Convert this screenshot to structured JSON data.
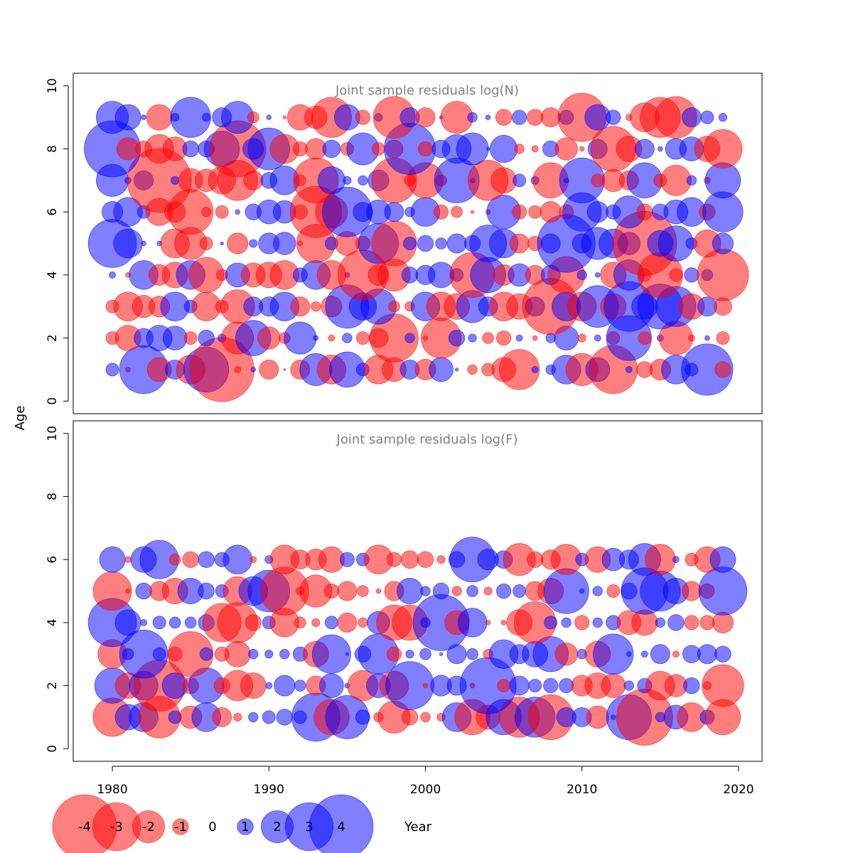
{
  "chart_data": [
    {
      "type": "bubble",
      "title": "Joint sample residuals log(N)",
      "xlabel": "Year",
      "ylabel": "Age",
      "xlim": [
        1977.5,
        2021.5
      ],
      "ylim": [
        -0.4,
        10.4
      ],
      "xticks": [
        1980,
        1990,
        2000,
        2010,
        2020
      ],
      "yticks": [
        0,
        2,
        4,
        6,
        8,
        10
      ],
      "years": [
        1980,
        1981,
        1982,
        1983,
        1984,
        1985,
        1986,
        1987,
        1988,
        1989,
        1990,
        1991,
        1992,
        1993,
        1994,
        1995,
        1996,
        1997,
        1998,
        1999,
        2000,
        2001,
        2002,
        2003,
        2004,
        2005,
        2006,
        2007,
        2008,
        2009,
        2010,
        2011,
        2012,
        2013,
        2014,
        2015,
        2016,
        2017,
        2018,
        2019
      ],
      "ages": [
        1,
        2,
        3,
        4,
        5,
        6,
        7,
        8,
        9
      ],
      "residuals": [
        [
          0.8,
          -0.3,
          3.0,
          -1.5,
          1.2,
          -1.8,
          2.8,
          -4.0,
          -0.4,
          0.3,
          -1.2,
          0.1,
          -1.2,
          2.0,
          -1.8,
          2.2,
          0.8,
          -1.8,
          -1.5,
          1.2,
          -1.3,
          1.5,
          0.2,
          -0.6,
          -0.8,
          -1.5,
          -2.5,
          0.4,
          0.6,
          1.8,
          -2.0,
          1.5,
          -3.0,
          0.4,
          -1.0,
          -1.3,
          1.8,
          0.8,
          3.2,
          -1.0
        ],
        [
          -0.8,
          -1.6,
          1.2,
          1.6,
          1.5,
          -0.8,
          1.0,
          0.5,
          -2.0,
          2.2,
          -1.4,
          -0.7,
          2.0,
          0.3,
          -0.4,
          0.6,
          -0.8,
          -1.2,
          -3.0,
          0.6,
          -0.3,
          -2.5,
          1.0,
          0.5,
          -0.7,
          -0.9,
          0.4,
          -0.3,
          0.6,
          1.5,
          -0.5,
          0.4,
          -0.8,
          2.8,
          -0.8,
          0.4,
          -2.1,
          -0.4,
          0.3,
          -0.8
        ],
        [
          -0.8,
          -1.8,
          -1.4,
          -1.3,
          1.8,
          0.8,
          -1.8,
          -0.8,
          -2.1,
          1.2,
          1.2,
          1.8,
          -1.2,
          -0.6,
          -1.3,
          2.7,
          1.7,
          2.2,
          -0.7,
          -0.6,
          1.8,
          -1.8,
          -1.6,
          2.0,
          1.2,
          -1.8,
          -1.6,
          1.2,
          -3.5,
          1.8,
          -1.8,
          2.6,
          -1.6,
          3.1,
          1.6,
          2.8,
          2.5,
          -1.6,
          1.2,
          -1.1
        ],
        [
          0.4,
          -0.3,
          1.8,
          -1.3,
          -1.6,
          1.8,
          -2.2,
          -0.7,
          1.5,
          -1.5,
          -1.6,
          -1.8,
          0.9,
          1.8,
          -1.8,
          0.3,
          -3.1,
          -1.3,
          -2.0,
          1.0,
          1.2,
          1.6,
          0.8,
          -2.8,
          2.2,
          -1.3,
          1.4,
          -1.2,
          1.2,
          -2.3,
          0.6,
          0.3,
          -1.6,
          1.9,
          -0.8,
          -2.8,
          -0.8,
          0.9,
          0.7,
          -3.2
        ],
        [
          3.0,
          1.8,
          0.3,
          0.3,
          -1.8,
          -2.0,
          -0.8,
          0.2,
          -1.3,
          0.5,
          1.3,
          1.4,
          -0.3,
          -2.4,
          0.8,
          -1.5,
          -0.9,
          2.5,
          -2.8,
          0.8,
          1.0,
          0.7,
          1.2,
          1.0,
          2.3,
          1.8,
          -1.2,
          -0.9,
          1.2,
          3.6,
          1.2,
          2.0,
          1.8,
          1.4,
          -4.0,
          1.6,
          2.2,
          0.7,
          -1.7,
          1.3
        ],
        [
          1.3,
          1.8,
          0.8,
          -1.7,
          -1.3,
          -2.8,
          -0.6,
          -0.8,
          0.3,
          1.0,
          1.5,
          1.4,
          -0.9,
          -3.2,
          -2.0,
          3.1,
          1.2,
          1.5,
          1.2,
          0.6,
          1.8,
          -0.9,
          -0.7,
          -0.2,
          -0.3,
          2.1,
          -0.9,
          -0.8,
          -1.3,
          -0.9,
          2.4,
          1.3,
          0.9,
          2.0,
          -1.0,
          1.0,
          1.5,
          1.8,
          -1.0,
          2.5
        ],
        [
          2.0,
          0.4,
          1.2,
          -4.0,
          0.5,
          -1.5,
          -1.4,
          -1.7,
          -2.5,
          -1.2,
          1.0,
          1.8,
          -0.7,
          -2.8,
          1.7,
          0.5,
          0.6,
          1.3,
          -2.8,
          -0.7,
          -2.2,
          -0.7,
          2.8,
          0.3,
          -2.5,
          -1.6,
          0.8,
          0.5,
          -2.2,
          0.3,
          2.8,
          -0.8,
          -1.4,
          -1.2,
          2.2,
          -0.8,
          -1.9,
          0.6,
          -0.4,
          2.2
        ],
        [
          3.5,
          -1.4,
          -1.0,
          -1.8,
          -1.5,
          1.0,
          1.0,
          2.2,
          -3.5,
          1.3,
          2.6,
          -1.8,
          -0.9,
          -1.3,
          1.1,
          -0.8,
          2.0,
          -0.8,
          -1.1,
          3.2,
          -0.9,
          1.1,
          1.8,
          2.0,
          0.2,
          1.7,
          -0.6,
          -0.4,
          1.0,
          -1.4,
          -0.3,
          1.2,
          -2.8,
          -1.6,
          1.2,
          0.3,
          1.3,
          1.5,
          -1.6,
          -2.4
        ],
        [
          2.0,
          1.6,
          0.3,
          -1.6,
          0.5,
          2.5,
          0.5,
          1.2,
          2.0,
          -0.7,
          0.3,
          -0.2,
          -1.6,
          -1.4,
          -2.5,
          1.6,
          -0.9,
          0.5,
          -2.6,
          1.2,
          -1.2,
          0.2,
          -2.0,
          0.6,
          0.3,
          -1.0,
          0.9,
          -1.0,
          -1.2,
          0.9,
          -3.0,
          1.6,
          0.9,
          -0.4,
          -1.8,
          -2.5,
          -2.6,
          1.2,
          0.8,
          0.5
        ]
      ]
    },
    {
      "type": "bubble",
      "title": "Joint sample residuals log(F)",
      "xlabel": "Year",
      "ylabel": "Age",
      "xlim": [
        1977.5,
        2021.5
      ],
      "ylim": [
        -0.4,
        10.4
      ],
      "xticks": [
        1980,
        1990,
        2000,
        2010,
        2020
      ],
      "yticks": [
        0,
        2,
        4,
        6,
        8,
        10
      ],
      "years": [
        1980,
        1981,
        1982,
        1983,
        1984,
        1985,
        1986,
        1987,
        1988,
        1989,
        1990,
        1991,
        1992,
        1993,
        1994,
        1995,
        1996,
        1997,
        1998,
        1999,
        2000,
        2001,
        2002,
        2003,
        2004,
        2005,
        2006,
        2007,
        2008,
        2009,
        2010,
        2011,
        2012,
        2013,
        2014,
        2015,
        2016,
        2017,
        2018,
        2019
      ],
      "ages": [
        1,
        2,
        3,
        4,
        5,
        6
      ],
      "residuals": [
        [
          -2.4,
          1.6,
          1.8,
          -2.6,
          0.8,
          -1.4,
          1.8,
          -1.2,
          -0.5,
          0.6,
          0.8,
          1.0,
          0.8,
          3.0,
          -2.2,
          2.7,
          0.9,
          -0.6,
          -2.0,
          -1.0,
          -0.6,
          -0.5,
          1.8,
          -2.2,
          -1.5,
          2.2,
          -2.5,
          2.5,
          -2.8,
          1.2,
          1.2,
          -1.4,
          0.3,
          2.8,
          -3.5,
          0.6,
          1.5,
          -1.8,
          0.9,
          -2.2
        ],
        [
          2.2,
          -1.6,
          1.8,
          -3.2,
          1.6,
          -1.0,
          2.2,
          -1.0,
          -1.9,
          -1.6,
          0.4,
          1.3,
          0.7,
          -1.2,
          1.5,
          0.3,
          -1.9,
          1.5,
          -1.8,
          3.0,
          -0.3,
          1.3,
          1.2,
          -0.3,
          3.5,
          -0.8,
          1.2,
          0.8,
          0.9,
          0.9,
          -1.3,
          -1.6,
          -1.5,
          0.6,
          0.9,
          -1.8,
          -1.4,
          1.0,
          -0.5,
          -2.6
        ],
        [
          -1.8,
          0.7,
          3.0,
          0.8,
          -0.9,
          -2.8,
          0.8,
          -0.9,
          -1.6,
          0.6,
          0.5,
          0.6,
          0.9,
          -1.6,
          2.4,
          0.2,
          1.0,
          2.5,
          -0.9,
          0.5,
          0.7,
          0.2,
          1.2,
          0.7,
          -0.6,
          1.8,
          1.2,
          1.6,
          2.2,
          -1.4,
          0.6,
          -1.6,
          2.5,
          0.3,
          0.4,
          1.2,
          -0.4,
          1.1,
          1.2,
          1.0
        ],
        [
          3.0,
          1.6,
          0.4,
          0.8,
          0.7,
          0.7,
          1.0,
          -2.4,
          -2.5,
          -1.0,
          0.8,
          -1.8,
          -0.7,
          -0.5,
          0.8,
          -1.2,
          -0.6,
          1.4,
          -2.2,
          -2.2,
          0.6,
          3.5,
          -1.5,
          1.8,
          -0.3,
          -0.3,
          -1.6,
          -2.6,
          0.8,
          0.6,
          -0.9,
          0.6,
          0.9,
          -1.5,
          -1.6,
          0.6,
          1.0,
          -0.9,
          -0.9,
          -1.3
        ],
        [
          -2.4,
          -0.3,
          1.0,
          -1.2,
          -1.6,
          1.6,
          1.0,
          0.8,
          -1.8,
          1.8,
          2.6,
          -3.0,
          -0.5,
          -2.0,
          -0.9,
          -1.2,
          -0.7,
          -0.3,
          -1.2,
          1.6,
          0.6,
          1.0,
          -0.6,
          0.7,
          -0.5,
          0.9,
          0.8,
          -1.2,
          -1.6,
          2.8,
          0.3,
          0.6,
          -0.8,
          1.0,
          2.9,
          2.5,
          1.6,
          -1.2,
          -0.9,
          3.0
        ],
        [
          1.6,
          -0.4,
          1.6,
          2.4,
          -0.7,
          -1.0,
          1.0,
          0.9,
          1.8,
          -0.4,
          0.5,
          -1.8,
          -1.2,
          -1.3,
          -1.6,
          0.9,
          0.8,
          -1.8,
          -0.9,
          -1.1,
          -1.0,
          -0.5,
          1.0,
          2.8,
          1.3,
          1.1,
          -2.0,
          -1.0,
          -1.2,
          -1.9,
          0.8,
          -1.6,
          1.4,
          1.2,
          2.0,
          -1.9,
          0.4,
          -0.8,
          -1.6,
          1.6
        ]
      ]
    }
  ],
  "legend": {
    "values": [
      -4,
      -3,
      -2,
      -1,
      0,
      1,
      2,
      3,
      4
    ],
    "labels": [
      "-4",
      "-3",
      "-2",
      "-1",
      "0",
      "1",
      "2",
      "3",
      "4"
    ]
  },
  "colors": {
    "negative": "#ff0000",
    "positive": "#0000ff",
    "title": "#808080",
    "bubble_opacity": 0.5
  }
}
